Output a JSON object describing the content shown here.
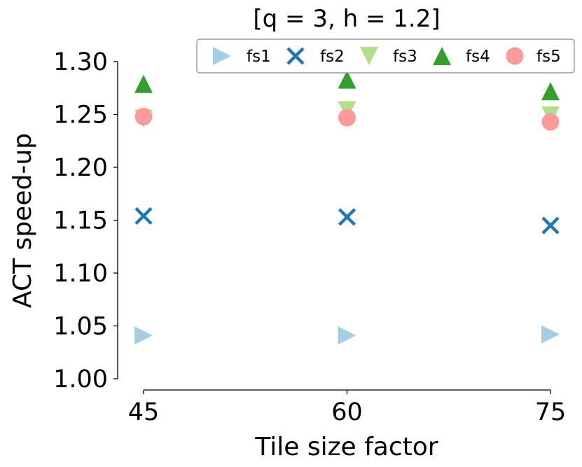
{
  "chart_data": {
    "type": "scatter",
    "title": "[q = 3, h = 1.2]",
    "xlabel": "Tile size factor",
    "ylabel": "ACT speed-up",
    "categories": [
      "45",
      "60",
      "75"
    ],
    "ylim": [
      1.0,
      1.3
    ],
    "yticks": [
      "1.00",
      "1.05",
      "1.10",
      "1.15",
      "1.20",
      "1.25",
      "1.30"
    ],
    "grid": false,
    "legend_position": "top-right",
    "series": [
      {
        "name": "fs1",
        "marker": "triangle-right",
        "color": "#a6cee3",
        "values": [
          1.041,
          1.041,
          1.042
        ]
      },
      {
        "name": "fs2",
        "marker": "x",
        "color": "#1f78b4",
        "values": [
          1.154,
          1.153,
          1.145
        ]
      },
      {
        "name": "fs3",
        "marker": "triangle-down",
        "color": "#b2df8a",
        "values": [
          1.246,
          1.254,
          1.249
        ]
      },
      {
        "name": "fs4",
        "marker": "triangle-up",
        "color": "#33a02c",
        "values": [
          1.279,
          1.283,
          1.272
        ]
      },
      {
        "name": "fs5",
        "marker": "circle",
        "color": "#fb9a99",
        "values": [
          1.248,
          1.247,
          1.243
        ]
      }
    ]
  }
}
